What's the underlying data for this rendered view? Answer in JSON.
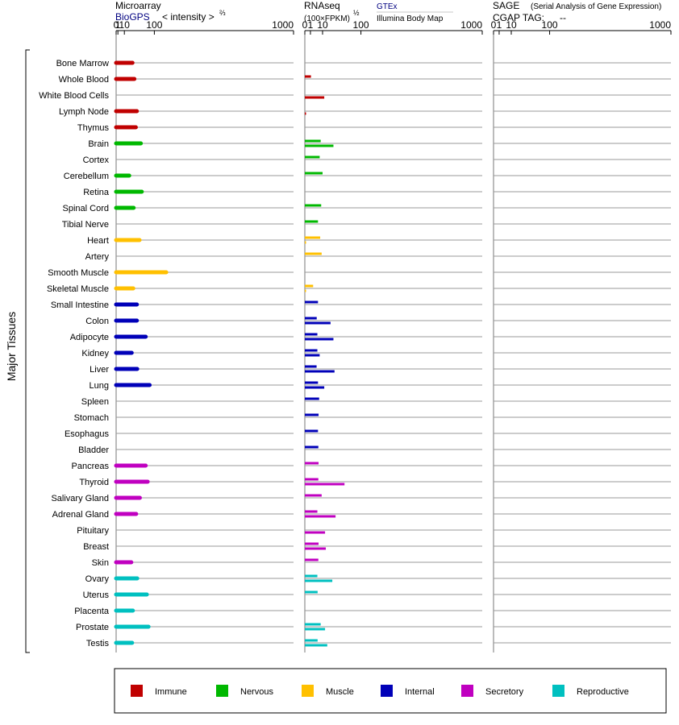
{
  "headers": {
    "microarray": {
      "title": "Microarray",
      "source": "BioGPS",
      "scale": "< intensity >",
      "exponent": "⅔"
    },
    "rnaseq": {
      "title": "RNAseq",
      "scale": "(100×FPKM)",
      "exponent": "½",
      "gtex": "GTEx",
      "illumina": "Illumina Body Map"
    },
    "sage": {
      "title": "SAGE",
      "subtitle": "(Serial Analysis of Gene Expression)",
      "cgap": "CGAP TAG:",
      "tag_value": "--"
    }
  },
  "colors": {
    "Immune": "#c00000",
    "Nervous": "#00b800",
    "Muscle": "#ffc000",
    "Internal": "#0000b8",
    "Secretory": "#c000c0",
    "Reproductive": "#00c0c0",
    "gtex_header": "#000080",
    "biogps_header": "#000080"
  },
  "chart_data": {
    "type": "bar",
    "ylabel": "Major Tissues",
    "axis_ticks": [
      "0",
      "1",
      "10",
      "100",
      "1000"
    ],
    "tissues": [
      {
        "name": "Bone Marrow",
        "system": "Immune",
        "microarray": 28,
        "gtex": null,
        "illumina": null
      },
      {
        "name": "Whole Blood",
        "system": "Immune",
        "microarray": 33,
        "gtex": 1.2,
        "illumina": null
      },
      {
        "name": "White Blood Cells",
        "system": "Immune",
        "microarray": null,
        "gtex": null,
        "illumina": 12
      },
      {
        "name": "Lymph Node",
        "system": "Immune",
        "microarray": 40,
        "gtex": null,
        "illumina": 0.01
      },
      {
        "name": "Thymus",
        "system": "Immune",
        "microarray": 37,
        "gtex": null,
        "illumina": null
      },
      {
        "name": "Brain",
        "system": "Nervous",
        "microarray": 52,
        "gtex": 8,
        "illumina": 26
      },
      {
        "name": "Cortex",
        "system": "Nervous",
        "microarray": null,
        "gtex": 7,
        "illumina": null
      },
      {
        "name": "Cerebellum",
        "system": "Nervous",
        "microarray": 20,
        "gtex": 10,
        "illumina": null
      },
      {
        "name": "Retina",
        "system": "Nervous",
        "microarray": 55,
        "gtex": null,
        "illumina": null
      },
      {
        "name": "Spinal Cord",
        "system": "Nervous",
        "microarray": 31,
        "gtex": 8.5,
        "illumina": null
      },
      {
        "name": "Tibial Nerve",
        "system": "Nervous",
        "microarray": null,
        "gtex": 5.5,
        "illumina": null
      },
      {
        "name": "Heart",
        "system": "Muscle",
        "microarray": 48,
        "gtex": 7.5,
        "illumina": 0.02
      },
      {
        "name": "Artery",
        "system": "Muscle",
        "microarray": null,
        "gtex": 9,
        "illumina": null
      },
      {
        "name": "Smooth Muscle",
        "system": "Muscle",
        "microarray": 150,
        "gtex": null,
        "illumina": null
      },
      {
        "name": "Skeletal Muscle",
        "system": "Muscle",
        "microarray": 30,
        "gtex": 2.2,
        "illumina": 0.01
      },
      {
        "name": "Small Intestine",
        "system": "Internal",
        "microarray": 40,
        "gtex": 5.5,
        "illumina": null
      },
      {
        "name": "Colon",
        "system": "Internal",
        "microarray": 40,
        "gtex": 4.5,
        "illumina": 21
      },
      {
        "name": "Adipocyte",
        "system": "Internal",
        "microarray": 68,
        "gtex": 5,
        "illumina": 26
      },
      {
        "name": "Kidney",
        "system": "Internal",
        "microarray": 26,
        "gtex": 5,
        "illumina": 7
      },
      {
        "name": "Liver",
        "system": "Internal",
        "microarray": 41,
        "gtex": 4.4,
        "illumina": 28
      },
      {
        "name": "Lung",
        "system": "Internal",
        "microarray": 82,
        "gtex": 5.5,
        "illumina": 12
      },
      {
        "name": "Spleen",
        "system": "Internal",
        "microarray": null,
        "gtex": 6.5,
        "illumina": null
      },
      {
        "name": "Stomach",
        "system": "Internal",
        "microarray": null,
        "gtex": 6,
        "illumina": null
      },
      {
        "name": "Esophagus",
        "system": "Internal",
        "microarray": null,
        "gtex": 5.5,
        "illumina": null
      },
      {
        "name": "Bladder",
        "system": "Internal",
        "microarray": null,
        "gtex": 5.8,
        "illumina": null
      },
      {
        "name": "Pancreas",
        "system": "Secretory",
        "microarray": 68,
        "gtex": 6,
        "illumina": null
      },
      {
        "name": "Thyroid",
        "system": "Secretory",
        "microarray": 75,
        "gtex": 5.8,
        "illumina": 50
      },
      {
        "name": "Salivary Gland",
        "system": "Secretory",
        "microarray": 49,
        "gtex": 9,
        "illumina": null
      },
      {
        "name": "Adrenal Gland",
        "system": "Secretory",
        "microarray": 38,
        "gtex": 5,
        "illumina": 30
      },
      {
        "name": "Pituitary",
        "system": "Secretory",
        "microarray": null,
        "gtex": null,
        "illumina": 13
      },
      {
        "name": "Breast",
        "system": "Secretory",
        "microarray": null,
        "gtex": 6,
        "illumina": 14
      },
      {
        "name": "Skin",
        "system": "Secretory",
        "microarray": 25,
        "gtex": 5.8,
        "illumina": null
      },
      {
        "name": "Ovary",
        "system": "Reproductive",
        "microarray": 41,
        "gtex": 5,
        "illumina": 24
      },
      {
        "name": "Uterus",
        "system": "Reproductive",
        "microarray": 72,
        "gtex": 5.2,
        "illumina": null
      },
      {
        "name": "Placenta",
        "system": "Reproductive",
        "microarray": 29,
        "gtex": null,
        "illumina": null
      },
      {
        "name": "Prostate",
        "system": "Reproductive",
        "microarray": 78,
        "gtex": 8,
        "illumina": 13
      },
      {
        "name": "Testis",
        "system": "Reproductive",
        "microarray": 27,
        "gtex": 5.2,
        "illumina": 16
      }
    ]
  },
  "legend": [
    {
      "label": "Immune",
      "key": "Immune"
    },
    {
      "label": "Nervous",
      "key": "Nervous"
    },
    {
      "label": "Muscle",
      "key": "Muscle"
    },
    {
      "label": "Internal",
      "key": "Internal"
    },
    {
      "label": "Secretory",
      "key": "Secretory"
    },
    {
      "label": "Reproductive",
      "key": "Reproductive"
    }
  ]
}
